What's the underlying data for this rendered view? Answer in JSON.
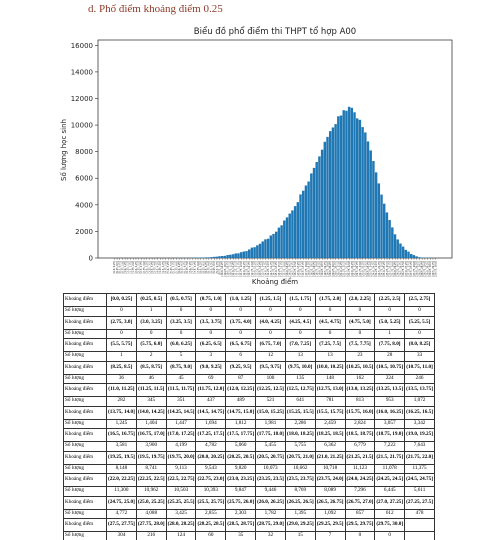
{
  "heading": "d.   Phổ điểm khoảng điểm 0.25",
  "chart": {
    "type": "bar",
    "title": "Biểu đồ phổ điểm thi THPT tổ hợp A00",
    "y_label": "Số lượng học sinh",
    "x_label": "Khoảng điểm",
    "color": "#1f77b4",
    "ylim": [
      0,
      16400
    ],
    "yticks": [
      0,
      2000,
      4000,
      6000,
      8000,
      10000,
      12000,
      14000,
      16000
    ]
  },
  "table": {
    "range_label": "Khoảng điểm",
    "count_label": "Số lượng",
    "rows": [
      {
        "ranges": [
          "[0.0, 0.25]",
          "(0.25, 0.5]",
          "(0.5, 0.75]",
          "(0.75, 1.0]",
          "(1.0, 1.25]",
          "(1.25, 1.5]",
          "(1.5, 1.75]",
          "(1.75, 2.0]",
          "(2.0, 2.25]",
          "(2.25, 2.5]",
          "(2.5, 2.75]"
        ],
        "counts": [
          0,
          1,
          0,
          0,
          0,
          0,
          0,
          0,
          0,
          0,
          0
        ],
        "count_labels": [
          "0",
          "1",
          "0",
          "0",
          "0",
          "0",
          "0",
          "0",
          "0",
          "0",
          "0"
        ]
      },
      {
        "ranges": [
          "(2.75, 3.0]",
          "(3.0, 3.25]",
          "(3.25, 3.5]",
          "(3.5, 3.75]",
          "(3.75, 4.0]",
          "(4.0, 4.25]",
          "(4.25, 4.5]",
          "(4.5, 4.75]",
          "(4.75, 5.0]",
          "(5.0, 5.25]",
          "(5.25, 5.5]"
        ],
        "counts": [
          0,
          0,
          0,
          0,
          0,
          0,
          0,
          0,
          0,
          1,
          0
        ],
        "count_labels": [
          "0",
          "0",
          "0",
          "0",
          "0",
          "0",
          "0",
          "0",
          "0",
          "1",
          "0"
        ]
      },
      {
        "ranges": [
          "(5.5, 5.75]",
          "(5.75, 6.0]",
          "(6.0, 6.25]",
          "(6.25, 6.5]",
          "(6.5, 6.75]",
          "(6.75, 7.0]",
          "(7.0, 7.25]",
          "(7.25, 7.5]",
          "(7.5, 7.75]",
          "(7.75, 8.0]",
          "(8.0, 8.25]"
        ],
        "counts": [
          1,
          2,
          5,
          3,
          6,
          12,
          13,
          13,
          23,
          28,
          33
        ],
        "count_labels": [
          "1",
          "2",
          "5",
          "3",
          "6",
          "12",
          "13",
          "13",
          "23",
          "28",
          "33"
        ]
      },
      {
        "ranges": [
          "(8.25, 8.5]",
          "(8.5, 8.75]",
          "(8.75, 9.0]",
          "(9.0, 9.25]",
          "(9.25, 9.5]",
          "(9.5, 9.75]",
          "(9.75, 10.0]",
          "(10.0, 10.25]",
          "(10.25, 10.5]",
          "(10.5, 10.75]",
          "(10.75, 11.0]"
        ],
        "counts": [
          36,
          46,
          45,
          69,
          87,
          100,
          135,
          148,
          162,
          224,
          246
        ],
        "count_labels": [
          "36",
          "46",
          "45",
          "69",
          "87",
          "100",
          "135",
          "148",
          "162",
          "224",
          "246"
        ]
      },
      {
        "ranges": [
          "(11.0, 11.25]",
          "(11.25, 11.5]",
          "(11.5, 11.75]",
          "(11.75, 12.0]",
          "(12.0, 12.25]",
          "(12.25, 12.5]",
          "(12.5, 12.75]",
          "(12.75, 13.0]",
          "(13.0, 13.25]",
          "(13.25, 13.5]",
          "(13.5, 13.75]"
        ],
        "counts": [
          282,
          345,
          351,
          437,
          489,
          521,
          641,
          781,
          813,
          953,
          1072
        ],
        "count_labels": [
          "282",
          "345",
          "351",
          "437",
          "489",
          "521",
          "641",
          "781",
          "813",
          "953",
          "1,072"
        ]
      },
      {
        "ranges": [
          "(13.75, 14.0]",
          "(14.0, 14.25]",
          "(14.25, 14.5]",
          "(14.5, 14.75]",
          "(14.75, 15.0]",
          "(15.0, 15.25]",
          "(15.25, 15.5]",
          "(15.5, 15.75]",
          "(15.75, 16.0]",
          "(16.0, 16.25]",
          "(16.25, 16.5]"
        ],
        "counts": [
          1245,
          1404,
          1447,
          1694,
          1812,
          1981,
          2286,
          2459,
          2824,
          3057,
          3342
        ],
        "count_labels": [
          "1,245",
          "1,404",
          "1,447",
          "1,694",
          "1,812",
          "1,981",
          "2,286",
          "2,459",
          "2,824",
          "3,057",
          "3,342"
        ]
      },
      {
        "ranges": [
          "(16.5, 16.75]",
          "(16.75, 17.0]",
          "(17.0, 17.25]",
          "(17.25, 17.5]",
          "(17.5, 17.75]",
          "(17.75, 18.0]",
          "(18.0, 18.25]",
          "(18.25, 18.5]",
          "(18.5, 18.75]",
          "(18.75, 19.0]",
          "(19.0, 19.25]"
        ],
        "counts": [
          3581,
          3900,
          4199,
          4782,
          5060,
          5455,
          5755,
          6362,
          6779,
          7222,
          7643
        ],
        "count_labels": [
          "3,581",
          "3,900",
          "4,199",
          "4,782",
          "5,060",
          "5,455",
          "5,755",
          "6,362",
          "6,779",
          "7,222",
          "7,643"
        ]
      },
      {
        "ranges": [
          "(19.25, 19.5]",
          "(19.5, 19.75]",
          "(19.75, 20.0]",
          "(20.0, 20.25]",
          "(20.25, 20.5]",
          "(20.5, 20.75]",
          "(20.75, 21.0]",
          "(21.0, 21.25]",
          "(21.25, 21.5]",
          "(21.5, 21.75]",
          "(21.75, 22.0]"
        ],
        "counts": [
          8148,
          8741,
          9113,
          9543,
          9820,
          10073,
          10662,
          10718,
          11123,
          11078,
          11375
        ],
        "count_labels": [
          "8,148",
          "8,741",
          "9,113",
          "9,543",
          "9,820",
          "10,073",
          "10,662",
          "10,718",
          "11,123",
          "11,078",
          "11,375"
        ]
      },
      {
        "ranges": [
          "(22.0, 22.25]",
          "(22.25, 22.5]",
          "(22.5, 22.75]",
          "(22.75, 23.0]",
          "(23.0, 23.25]",
          "(23.25, 23.5]",
          "(23.5, 23.75]",
          "(23.75, 24.0]",
          "(24.0, 24.25]",
          "(24.25, 24.5]",
          "(24.5, 24.75]"
        ],
        "counts": [
          11300,
          10962,
          10503,
          10393,
          9847,
          9446,
          8769,
          8089,
          7296,
          6445,
          5611
        ],
        "count_labels": [
          "11,300",
          "10,962",
          "10,503",
          "10,393",
          "9,847",
          "9,446",
          "8,769",
          "8,089",
          "7,296",
          "6,445",
          "5,611"
        ]
      },
      {
        "ranges": [
          "(24.75, 25.0]",
          "(25.0, 25.25]",
          "(25.25, 25.5]",
          "(25.5, 25.75]",
          "(25.75, 26.0]",
          "(26.0, 26.25]",
          "(26.25, 26.5]",
          "(26.5, 26.75]",
          "(26.75, 27.0]",
          "(27.0, 27.25]",
          "(27.25, 27.5]"
        ],
        "counts": [
          4772,
          4088,
          3425,
          2855,
          2303,
          1782,
          1395,
          1092,
          857,
          612,
          478
        ],
        "count_labels": [
          "4,772",
          "4,088",
          "3,425",
          "2,855",
          "2,303",
          "1,782",
          "1,395",
          "1,092",
          "857",
          "612",
          "478"
        ]
      },
      {
        "ranges": [
          "(27.5, 27.75]",
          "(27.75, 28.0]",
          "(28.0, 28.25]",
          "(28.25, 28.5]",
          "(28.5, 28.75]",
          "(28.75, 29.0]",
          "(29.0, 29.25]",
          "(29.25, 29.5]",
          "(29.5, 29.75]",
          "(29.75, 30.0]"
        ],
        "counts": [
          304,
          216,
          124,
          60,
          35,
          32,
          15,
          7,
          0,
          0
        ],
        "count_labels": [
          "304",
          "216",
          "124",
          "60",
          "35",
          "32",
          "15",
          "7",
          "0",
          "0"
        ]
      }
    ]
  }
}
